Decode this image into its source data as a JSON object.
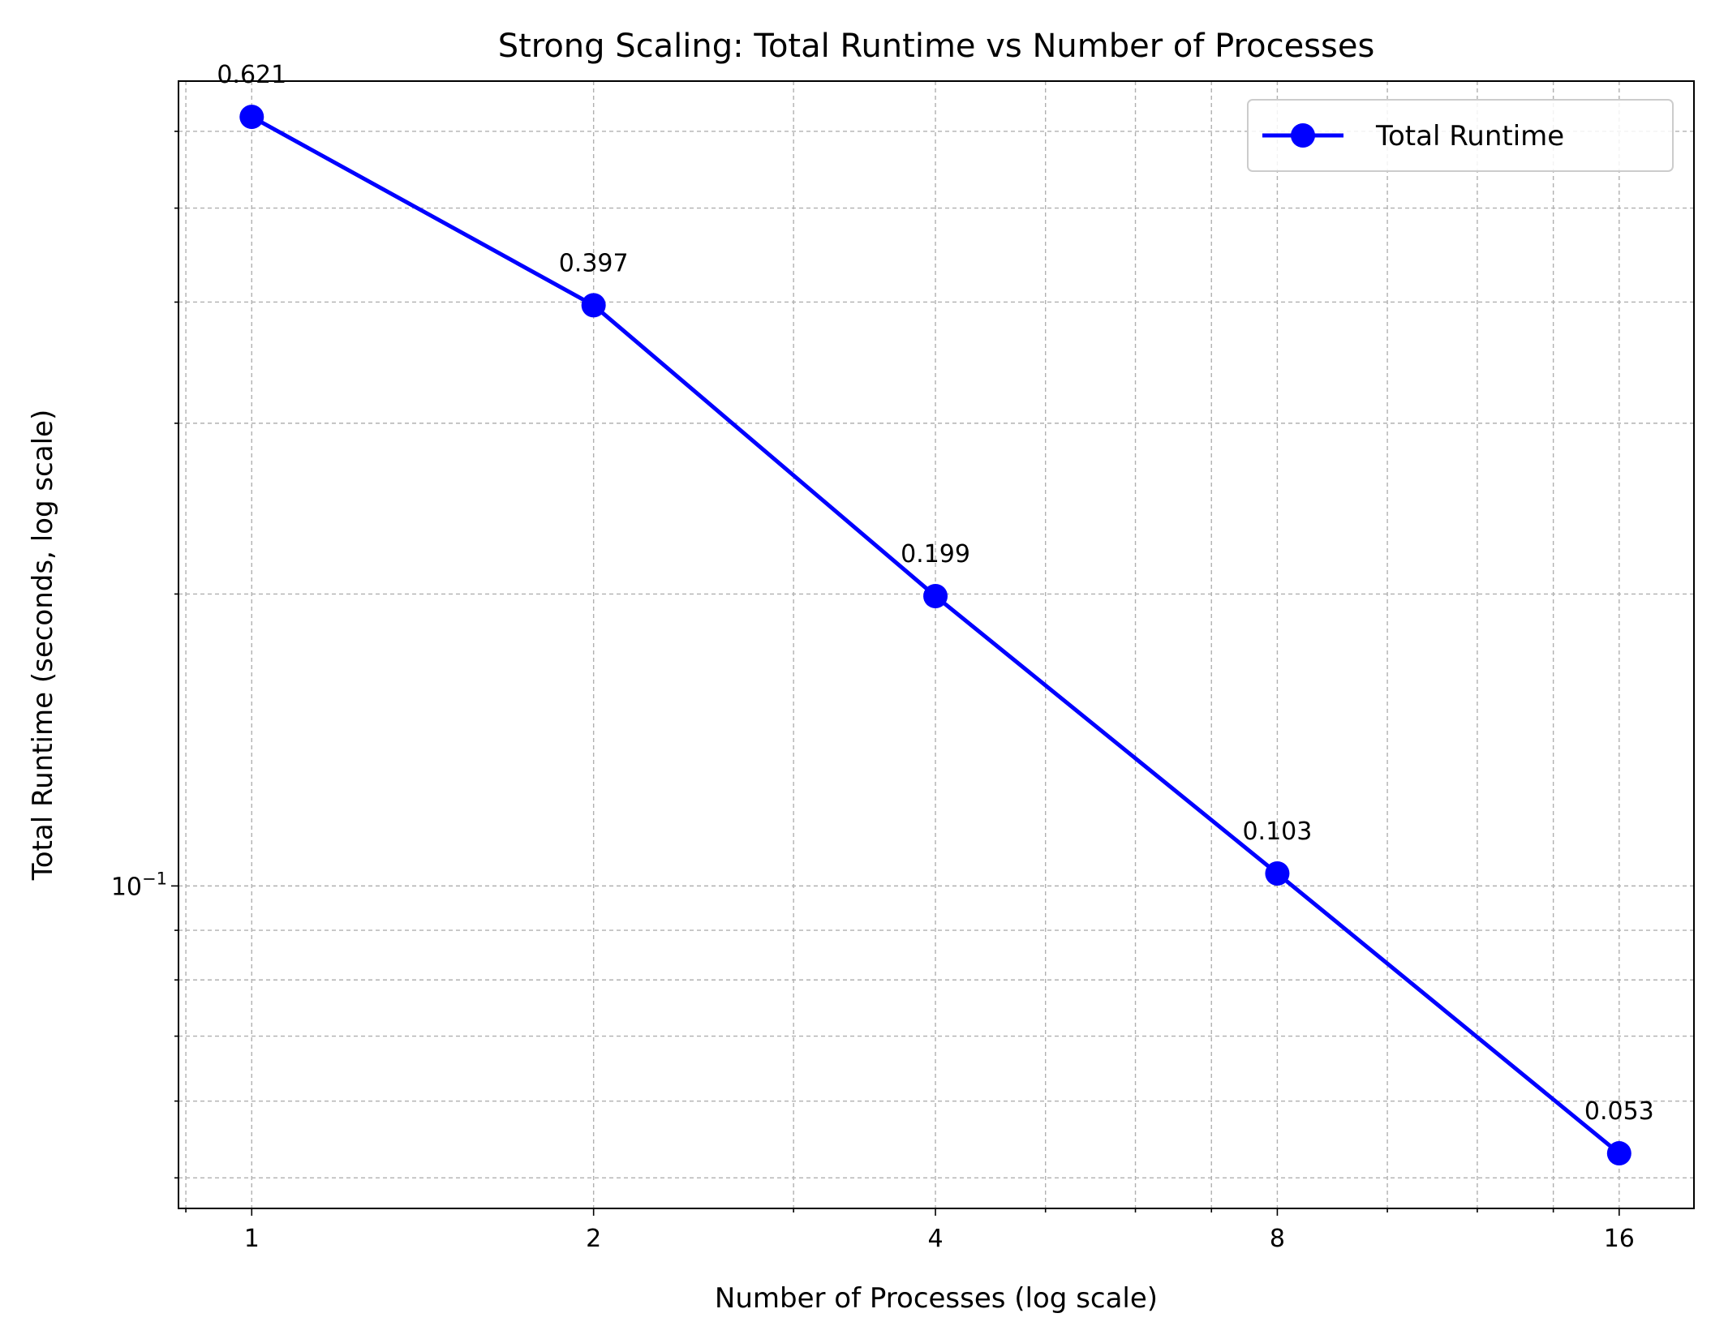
{
  "chart_data": {
    "type": "line",
    "title": "Strong Scaling: Total Runtime vs Number of Processes",
    "xlabel": "Number of Processes (log scale)",
    "ylabel": "Total Runtime (seconds, log scale)",
    "x_scale": "log2",
    "y_scale": "log10",
    "xlim": [
      0.862,
      18.62
    ],
    "ylim": [
      0.0465,
      0.676
    ],
    "x_ticks": [
      1,
      2,
      4,
      8,
      16
    ],
    "x_tick_labels": [
      "1",
      "2",
      "4",
      "8",
      "16"
    ],
    "y_ticks": [
      0.1
    ],
    "y_tick_labels": [
      {
        "base": "10",
        "exponent": "−1"
      }
    ],
    "grid": "on (major and minor, dashed)",
    "legend_position": "top-right",
    "colors": {
      "series": "#0000ff",
      "grid": "#b0b0b0",
      "frame": "#000000"
    },
    "series": [
      {
        "name": "Total Runtime",
        "x": [
          1,
          2,
          4,
          8,
          16
        ],
        "y": [
          0.621,
          0.397,
          0.199,
          0.103,
          0.053
        ],
        "labels": [
          "0.621",
          "0.397",
          "0.199",
          "0.103",
          "0.053"
        ],
        "marker": "circle"
      }
    ]
  }
}
